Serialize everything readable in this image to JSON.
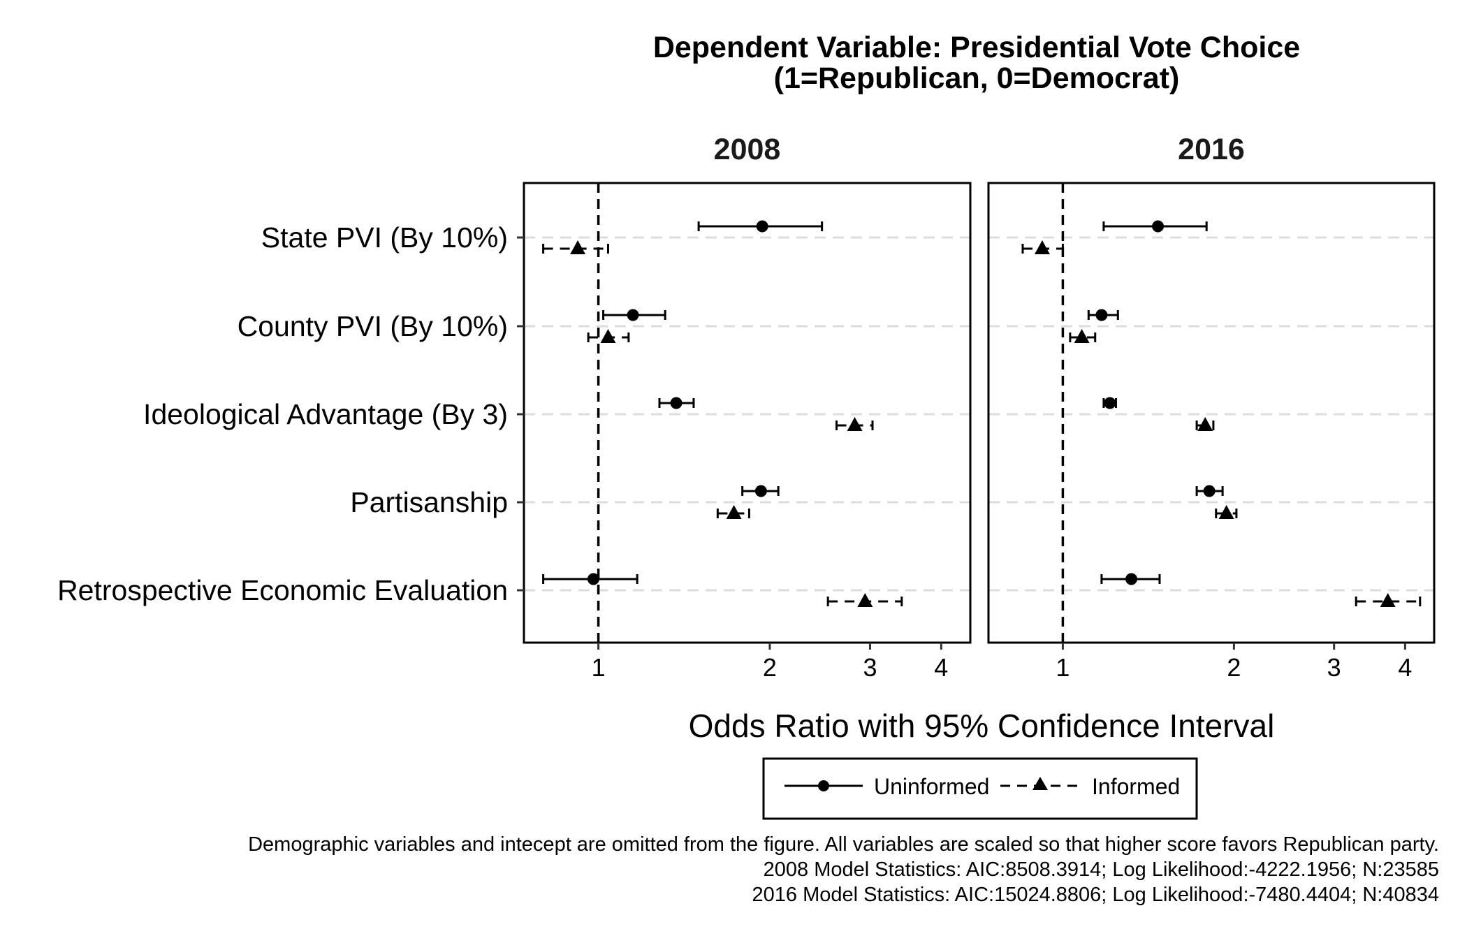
{
  "chart_data": {
    "type": "scatter",
    "subtype": "coefficient-plot-with-error-bars",
    "title_line1": "Dependent Variable: Presidential Vote Choice",
    "title_line2": "(1=Republican, 0=Democrat)",
    "xlabel": "Odds Ratio with 95% Confidence Interval",
    "x_scale": "log",
    "x_reference_line": 1,
    "xlim": [
      0.74,
      4.5
    ],
    "x_ticks": [
      1,
      2,
      3,
      4
    ],
    "x_tick_labels": [
      "1",
      "2",
      "3",
      "4"
    ],
    "categories": [
      "State PVI (By 10%)",
      "County PVI (By 10%)",
      "Ideological Advantage (By 3)",
      "Partisanship",
      "Retrospective Economic Evaluation"
    ],
    "legend": {
      "position": "bottom",
      "items": [
        {
          "label": "Uninformed",
          "marker": "circle",
          "line": "solid"
        },
        {
          "label": "Informed",
          "marker": "triangle",
          "line": "dashed"
        }
      ]
    },
    "panels": [
      {
        "label": "2008",
        "series": [
          {
            "name": "Uninformed",
            "points": [
              {
                "category": "State PVI (By 10%)",
                "estimate": 1.94,
                "lower": 1.5,
                "upper": 2.47
              },
              {
                "category": "County PVI (By 10%)",
                "estimate": 1.15,
                "lower": 1.02,
                "upper": 1.31
              },
              {
                "category": "Ideological Advantage (By 3)",
                "estimate": 1.37,
                "lower": 1.28,
                "upper": 1.47
              },
              {
                "category": "Partisanship",
                "estimate": 1.93,
                "lower": 1.79,
                "upper": 2.07
              },
              {
                "category": "Retrospective Economic Evaluation",
                "estimate": 0.98,
                "lower": 0.8,
                "upper": 1.17
              }
            ]
          },
          {
            "name": "Informed",
            "points": [
              {
                "category": "State PVI (By 10%)",
                "estimate": 0.92,
                "lower": 0.8,
                "upper": 1.04
              },
              {
                "category": "County PVI (By 10%)",
                "estimate": 1.04,
                "lower": 0.96,
                "upper": 1.13
              },
              {
                "category": "Ideological Advantage (By 3)",
                "estimate": 2.82,
                "lower": 2.62,
                "upper": 3.03
              },
              {
                "category": "Partisanship",
                "estimate": 1.73,
                "lower": 1.62,
                "upper": 1.84
              },
              {
                "category": "Retrospective Economic Evaluation",
                "estimate": 2.94,
                "lower": 2.53,
                "upper": 3.41
              }
            ]
          }
        ]
      },
      {
        "label": "2016",
        "series": [
          {
            "name": "Uninformed",
            "points": [
              {
                "category": "State PVI (By 10%)",
                "estimate": 1.47,
                "lower": 1.18,
                "upper": 1.79
              },
              {
                "category": "County PVI (By 10%)",
                "estimate": 1.17,
                "lower": 1.11,
                "upper": 1.25
              },
              {
                "category": "Ideological Advantage (By 3)",
                "estimate": 1.21,
                "lower": 1.18,
                "upper": 1.24
              },
              {
                "category": "Partisanship",
                "estimate": 1.81,
                "lower": 1.72,
                "upper": 1.91
              },
              {
                "category": "Retrospective Economic Evaluation",
                "estimate": 1.32,
                "lower": 1.17,
                "upper": 1.48
              }
            ]
          },
          {
            "name": "Informed",
            "points": [
              {
                "category": "State PVI (By 10%)",
                "estimate": 0.92,
                "lower": 0.85,
                "upper": 1.0
              },
              {
                "category": "County PVI (By 10%)",
                "estimate": 1.08,
                "lower": 1.03,
                "upper": 1.14
              },
              {
                "category": "Ideological Advantage (By 3)",
                "estimate": 1.78,
                "lower": 1.72,
                "upper": 1.84
              },
              {
                "category": "Partisanship",
                "estimate": 1.94,
                "lower": 1.86,
                "upper": 2.02
              },
              {
                "category": "Retrospective Economic Evaluation",
                "estimate": 3.73,
                "lower": 3.28,
                "upper": 4.25
              }
            ]
          }
        ]
      }
    ]
  },
  "footnotes": [
    "Demographic variables and intecept are omitted from the figure. All variables are scaled so that higher score favors Republican party.",
    "2008 Model Statistics: AIC:8508.3914; Log Likelihood:-4222.1956; N:23585",
    "2016 Model Statistics: AIC:15024.8806; Log Likelihood:-7480.4404; N:40834"
  ]
}
